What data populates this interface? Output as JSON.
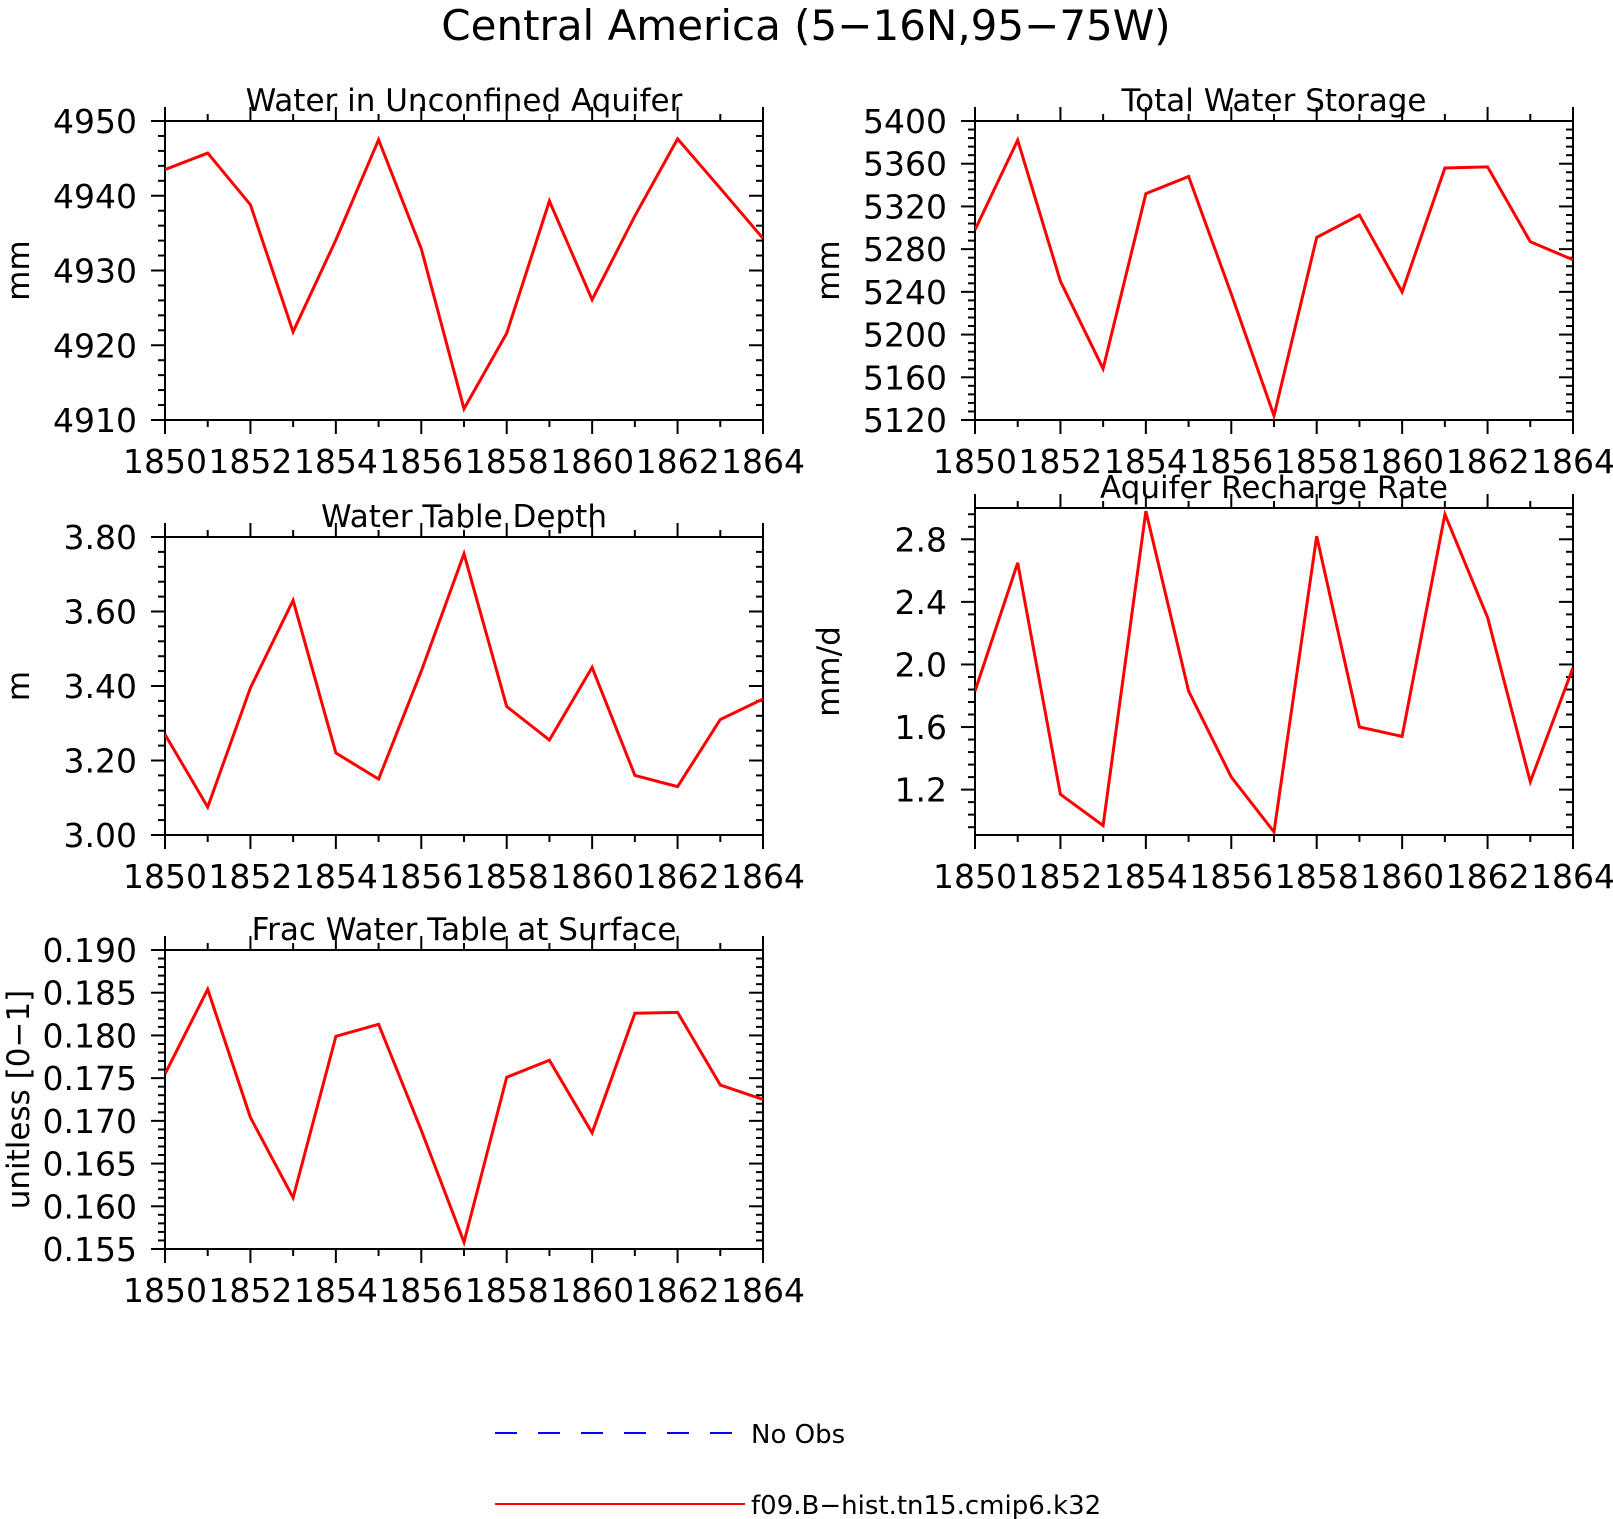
{
  "title": "Central America (5−16N,95−75W)",
  "chart_data": [
    {
      "type": "line",
      "title": "Water in Unconfined Aquifer",
      "xlabel": "",
      "ylabel": "mm",
      "x": [
        1850,
        1851,
        1852,
        1853,
        1854,
        1855,
        1856,
        1857,
        1858,
        1859,
        1860,
        1861,
        1862,
        1863,
        1864
      ],
      "xticks": [
        "1850",
        "1852",
        "1854",
        "1856",
        "1858",
        "1860",
        "1862",
        "1864"
      ],
      "yticks": [
        "4950",
        "4940",
        "4930",
        "4920",
        "4910"
      ],
      "xlim": [
        1850,
        1864
      ],
      "ylim": [
        4910,
        4950
      ],
      "series": [
        {
          "name": "f09.B−hist.tn15.cmip6.k32",
          "color": "#ff0000",
          "values": [
            4943.5,
            4945.7,
            4938.8,
            4921.8,
            4934.1,
            4947.5,
            4932.9,
            4911.5,
            4921.6,
            4939.3,
            4926.1,
            4937.3,
            4947.6,
            4941.0,
            4934.3
          ]
        }
      ]
    },
    {
      "type": "line",
      "title": "Total Water Storage",
      "xlabel": "",
      "ylabel": "mm",
      "x": [
        1850,
        1851,
        1852,
        1853,
        1854,
        1855,
        1856,
        1857,
        1858,
        1859,
        1860,
        1861,
        1862,
        1863,
        1864
      ],
      "xticks": [
        "1850",
        "1852",
        "1854",
        "1856",
        "1858",
        "1860",
        "1862",
        "1864"
      ],
      "yticks": [
        "5400",
        "5360",
        "5320",
        "5280",
        "5240",
        "5200",
        "5160",
        "5120"
      ],
      "xlim": [
        1850,
        1864
      ],
      "ylim": [
        5120,
        5400
      ],
      "series": [
        {
          "name": "f09.B−hist.tn15.cmip6.k32",
          "color": "#ff0000",
          "values": [
            5298,
            5382,
            5250,
            5168,
            5332,
            5348,
            5238,
            5124,
            5291,
            5312,
            5240,
            5356,
            5357,
            5287,
            5270
          ]
        }
      ]
    },
    {
      "type": "line",
      "title": "Water Table Depth",
      "xlabel": "",
      "ylabel": "m",
      "x": [
        1850,
        1851,
        1852,
        1853,
        1854,
        1855,
        1856,
        1857,
        1858,
        1859,
        1860,
        1861,
        1862,
        1863,
        1864
      ],
      "xticks": [
        "1850",
        "1852",
        "1854",
        "1856",
        "1858",
        "1860",
        "1862",
        "1864"
      ],
      "yticks": [
        "3.80",
        "3.60",
        "3.40",
        "3.20",
        "3.00"
      ],
      "xlim": [
        1850,
        1864
      ],
      "ylim": [
        3.0,
        3.8
      ],
      "series": [
        {
          "name": "f09.B−hist.tn15.cmip6.k32",
          "color": "#ff0000",
          "values": [
            3.27,
            3.075,
            3.395,
            3.63,
            3.22,
            3.15,
            3.44,
            3.755,
            3.345,
            3.255,
            3.45,
            3.16,
            3.13,
            3.31,
            3.365
          ]
        }
      ]
    },
    {
      "type": "line",
      "title": "Aquifer Recharge Rate",
      "xlabel": "",
      "ylabel": "mm/d",
      "x": [
        1850,
        1851,
        1852,
        1853,
        1854,
        1855,
        1856,
        1857,
        1858,
        1859,
        1860,
        1861,
        1862,
        1863,
        1864
      ],
      "xticks": [
        "1850",
        "1852",
        "1854",
        "1856",
        "1858",
        "1860",
        "1862",
        "1864"
      ],
      "yticks": [
        "2.8",
        "2.4",
        "2.0",
        "1.6",
        "1.2"
      ],
      "ytick_values": [
        2.8,
        2.4,
        2.0,
        1.6,
        1.2
      ],
      "xlim": [
        1850,
        1864
      ],
      "ylim": [
        0.91,
        3.0
      ],
      "series": [
        {
          "name": "f09.B−hist.tn15.cmip6.k32",
          "color": "#ff0000",
          "values": [
            1.83,
            2.65,
            1.17,
            0.97,
            2.98,
            1.83,
            1.28,
            0.93,
            2.82,
            1.6,
            1.54,
            2.96,
            2.3,
            1.25,
            1.98
          ]
        }
      ]
    },
    {
      "type": "line",
      "title": "Frac Water Table at Surface",
      "xlabel": "",
      "ylabel": "unitless [0−1]",
      "x": [
        1850,
        1851,
        1852,
        1853,
        1854,
        1855,
        1856,
        1857,
        1858,
        1859,
        1860,
        1861,
        1862,
        1863,
        1864
      ],
      "xticks": [
        "1850",
        "1852",
        "1854",
        "1856",
        "1858",
        "1860",
        "1862",
        "1864"
      ],
      "yticks": [
        "0.190",
        "0.185",
        "0.180",
        "0.175",
        "0.170",
        "0.165",
        "0.160",
        "0.155"
      ],
      "xlim": [
        1850,
        1864
      ],
      "ylim": [
        0.155,
        0.19
      ],
      "series": [
        {
          "name": "f09.B−hist.tn15.cmip6.k32",
          "color": "#ff0000",
          "values": [
            0.1755,
            0.1854,
            0.1704,
            0.161,
            0.1799,
            0.1813,
            0.1689,
            0.1558,
            0.1751,
            0.1771,
            0.1686,
            0.1826,
            0.1827,
            0.1742,
            0.1725
          ]
        }
      ]
    }
  ],
  "legend": [
    {
      "label": "No Obs",
      "color": "#0000ff",
      "style": "dashed"
    },
    {
      "label": "f09.B−hist.tn15.cmip6.k32",
      "color": "#ff0000",
      "style": "solid"
    }
  ]
}
